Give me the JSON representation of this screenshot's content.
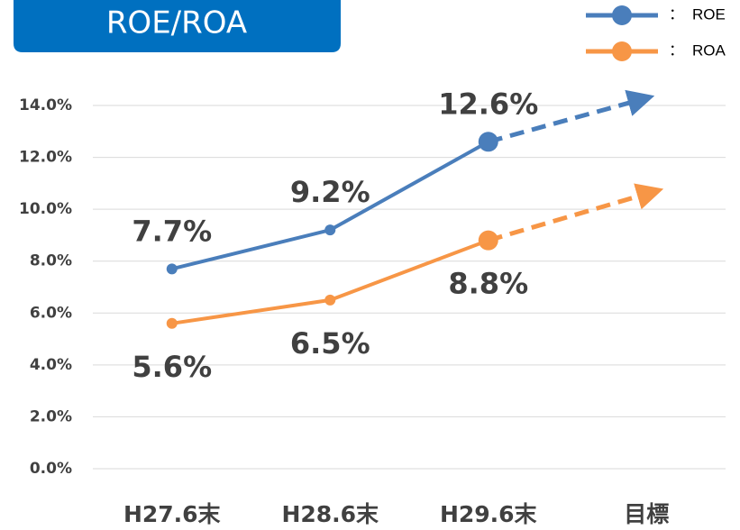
{
  "chart_data": {
    "type": "line",
    "title": "ROE/ROA",
    "categories": [
      "H27.6末",
      "H28.6末",
      "H29.6末",
      "目標"
    ],
    "series": [
      {
        "name": "ROE",
        "color": "#4a7ebb",
        "values": [
          7.7,
          9.2,
          12.6,
          null
        ],
        "value_labels": [
          "7.7%",
          "9.2%",
          "12.6%",
          null
        ]
      },
      {
        "name": "ROA",
        "color": "#f79646",
        "values": [
          5.6,
          6.5,
          8.8,
          null
        ],
        "value_labels": [
          "5.6%",
          "6.5%",
          "8.8%",
          null
        ]
      }
    ],
    "ylim": [
      0,
      14
    ],
    "yticks": [
      {
        "value": 0,
        "label": "0.0%"
      },
      {
        "value": 2,
        "label": "2.0%"
      },
      {
        "value": 4,
        "label": "4.0%"
      },
      {
        "value": 6,
        "label": "6.0%"
      },
      {
        "value": 8,
        "label": "8.0%"
      },
      {
        "value": 10,
        "label": "10.0%"
      },
      {
        "value": 12,
        "label": "12.0%"
      },
      {
        "value": 14,
        "label": "14.0%"
      }
    ],
    "grid": true,
    "legend": "top-right"
  }
}
